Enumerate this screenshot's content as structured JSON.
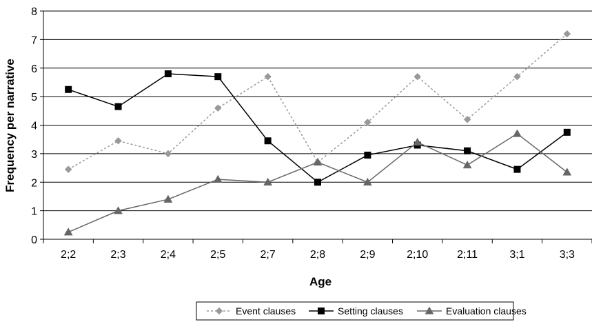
{
  "chart_data": {
    "type": "line",
    "categories": [
      "2;2",
      "2;3",
      "2;4",
      "2;5",
      "2;7",
      "2;8",
      "2;9",
      "2;10",
      "2;11",
      "3;1",
      "3;3"
    ],
    "xlabel": "Age",
    "ylabel": "Frequency per narrative",
    "ylim": [
      0,
      8
    ],
    "yticks": [
      "0",
      "1",
      "2",
      "3",
      "4",
      "5",
      "6",
      "7",
      "8"
    ],
    "grid": "horizontal",
    "legend_position": "bottom",
    "series": [
      {
        "name": "Event clauses",
        "marker": "diamond",
        "line_style": "dotted",
        "color": "#999999",
        "values": [
          2.45,
          3.45,
          3.0,
          4.6,
          5.7,
          2.7,
          4.1,
          5.7,
          4.2,
          5.7,
          7.2
        ]
      },
      {
        "name": "Setting clauses",
        "marker": "square",
        "line_style": "solid",
        "color": "#000000",
        "values": [
          5.25,
          4.65,
          5.8,
          5.7,
          3.45,
          2.0,
          2.95,
          3.3,
          3.1,
          2.45,
          3.75
        ]
      },
      {
        "name": "Evaluation clauses",
        "marker": "triangle",
        "line_style": "solid",
        "color": "#666666",
        "values": [
          0.25,
          1.0,
          1.4,
          2.1,
          2.0,
          2.7,
          2.0,
          3.4,
          2.6,
          3.7,
          2.35
        ]
      }
    ]
  }
}
